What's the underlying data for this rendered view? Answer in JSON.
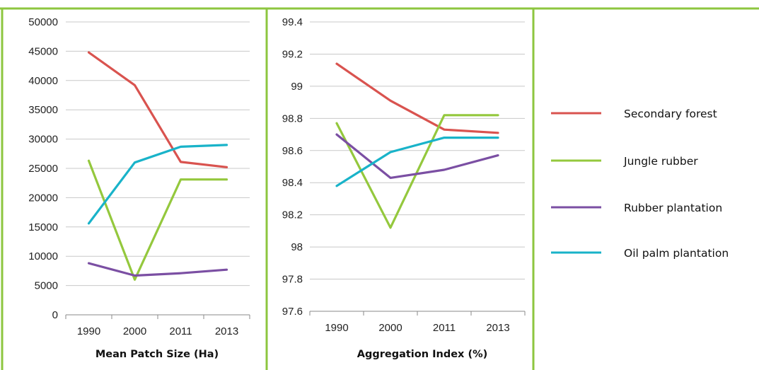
{
  "chart_data": [
    {
      "type": "line",
      "title": "",
      "xlabel": "Mean Patch Size (Ha)",
      "ylabel": "",
      "categories": [
        "1990",
        "2000",
        "2011",
        "2013"
      ],
      "ylim": [
        0,
        50000
      ],
      "yticks": [
        "0",
        "5000",
        "10000",
        "15000",
        "20000",
        "25000",
        "30000",
        "35000",
        "40000",
        "45000",
        "50000"
      ],
      "ytick_values": [
        0,
        5000,
        10000,
        15000,
        20000,
        25000,
        30000,
        35000,
        40000,
        45000,
        50000
      ],
      "grid": true,
      "series": [
        {
          "name": "Secondary forest",
          "color": "#d9534f",
          "values": [
            44800,
            39200,
            26100,
            25200
          ]
        },
        {
          "name": "Jungle rubber",
          "color": "#94c83d",
          "values": [
            26300,
            6000,
            23100,
            23100
          ]
        },
        {
          "name": "Rubber plantation",
          "color": "#7b4fa3",
          "values": [
            8800,
            6700,
            7100,
            7700
          ]
        },
        {
          "name": "Oil palm plantation",
          "color": "#19b3c9",
          "values": [
            15600,
            26000,
            28700,
            29000
          ]
        }
      ]
    },
    {
      "type": "line",
      "title": "",
      "xlabel": "Aggregation Index (%)",
      "ylabel": "",
      "categories": [
        "1990",
        "2000",
        "2011",
        "2013"
      ],
      "ylim": [
        97.6,
        99.4
      ],
      "yticks": [
        "97.6",
        "97.8",
        "98",
        "98.2",
        "98.4",
        "98.6",
        "98.8",
        "99",
        "99.2",
        "99.4"
      ],
      "ytick_values": [
        97.6,
        97.8,
        98.0,
        98.2,
        98.4,
        98.6,
        98.8,
        99.0,
        99.2,
        99.4
      ],
      "grid": true,
      "series": [
        {
          "name": "Secondary forest",
          "color": "#d9534f",
          "values": [
            99.14,
            98.91,
            98.73,
            98.71
          ]
        },
        {
          "name": "Jungle rubber",
          "color": "#94c83d",
          "values": [
            98.77,
            98.12,
            98.82,
            98.82
          ]
        },
        {
          "name": "Rubber plantation",
          "color": "#7b4fa3",
          "values": [
            98.7,
            98.43,
            98.48,
            98.57
          ]
        },
        {
          "name": "Oil palm plantation",
          "color": "#19b3c9",
          "values": [
            98.38,
            98.59,
            98.68,
            98.68
          ]
        }
      ]
    }
  ],
  "legend": {
    "placement": "right",
    "items": [
      {
        "label": "Secondary forest",
        "color": "#d9534f"
      },
      {
        "label": "Jungle rubber",
        "color": "#94c83d"
      },
      {
        "label": "Rubber plantation",
        "color": "#7b4fa3"
      },
      {
        "label": "Oil palm plantation",
        "color": "#19b3c9"
      }
    ]
  },
  "frame_color": "#8dc63f"
}
